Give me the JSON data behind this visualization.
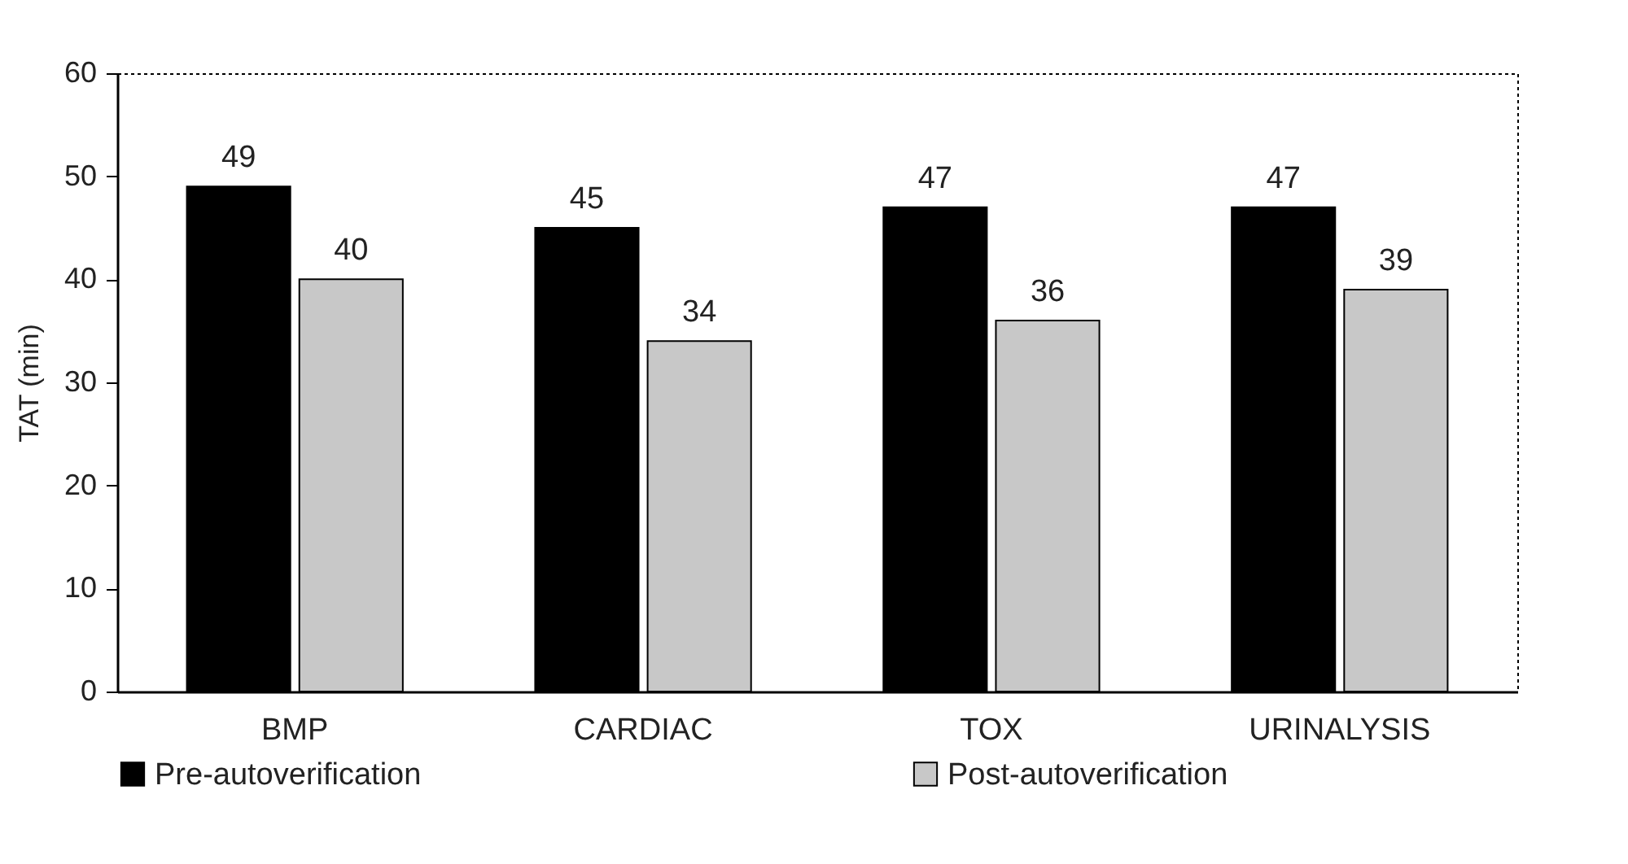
{
  "chart_data": {
    "type": "bar",
    "ylabel": "TAT (min)",
    "categories": [
      "BMP",
      "CARDIAC",
      "TOX",
      "URINALYSIS"
    ],
    "series": [
      {
        "name": "Pre-autoverification",
        "color": "#000000",
        "values": [
          49,
          45,
          47,
          47
        ]
      },
      {
        "name": "Post-autoverification",
        "color": "#c8c8c8",
        "values": [
          40,
          34,
          36,
          39
        ]
      }
    ],
    "ylim": [
      0,
      60
    ],
    "yticks": [
      0,
      10,
      20,
      30,
      40,
      50,
      60
    ],
    "data_labels": true,
    "legend": "bottom",
    "grid": false
  }
}
